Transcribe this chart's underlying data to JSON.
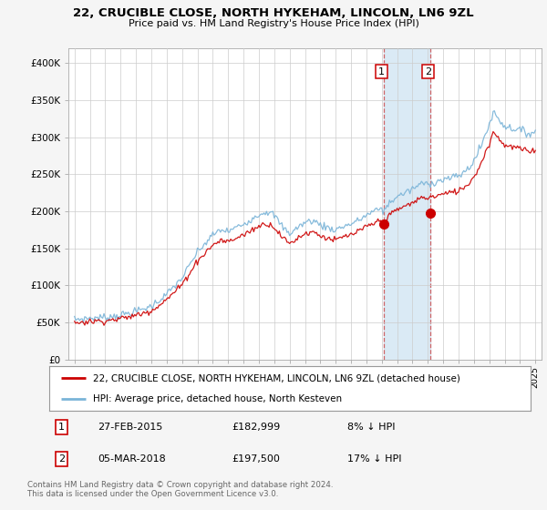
{
  "title": "22, CRUCIBLE CLOSE, NORTH HYKEHAM, LINCOLN, LN6 9ZL",
  "subtitle": "Price paid vs. HM Land Registry's House Price Index (HPI)",
  "legend_line1": "22, CRUCIBLE CLOSE, NORTH HYKEHAM, LINCOLN, LN6 9ZL (detached house)",
  "legend_line2": "HPI: Average price, detached house, North Kesteven",
  "transaction1_date": "27-FEB-2015",
  "transaction1_price": "£182,999",
  "transaction1_hpi": "8% ↓ HPI",
  "transaction2_date": "05-MAR-2018",
  "transaction2_price": "£197,500",
  "transaction2_hpi": "17% ↓ HPI",
  "footer": "Contains HM Land Registry data © Crown copyright and database right 2024.\nThis data is licensed under the Open Government Licence v3.0.",
  "hpi_color": "#7ab4d8",
  "price_color": "#cc0000",
  "shaded_color": "#daeaf5",
  "ylim": [
    0,
    420000
  ],
  "yticks": [
    0,
    50000,
    100000,
    150000,
    200000,
    250000,
    300000,
    350000,
    400000
  ],
  "ytick_labels": [
    "£0",
    "£50K",
    "£100K",
    "£150K",
    "£200K",
    "£250K",
    "£300K",
    "£350K",
    "£400K"
  ],
  "transaction1_year": 2015.12,
  "transaction2_year": 2018.18,
  "transaction1_price_val": 182999,
  "transaction2_price_val": 197500,
  "background_color": "#f5f5f5",
  "plot_bg_color": "#ffffff",
  "grid_color": "#cccccc"
}
